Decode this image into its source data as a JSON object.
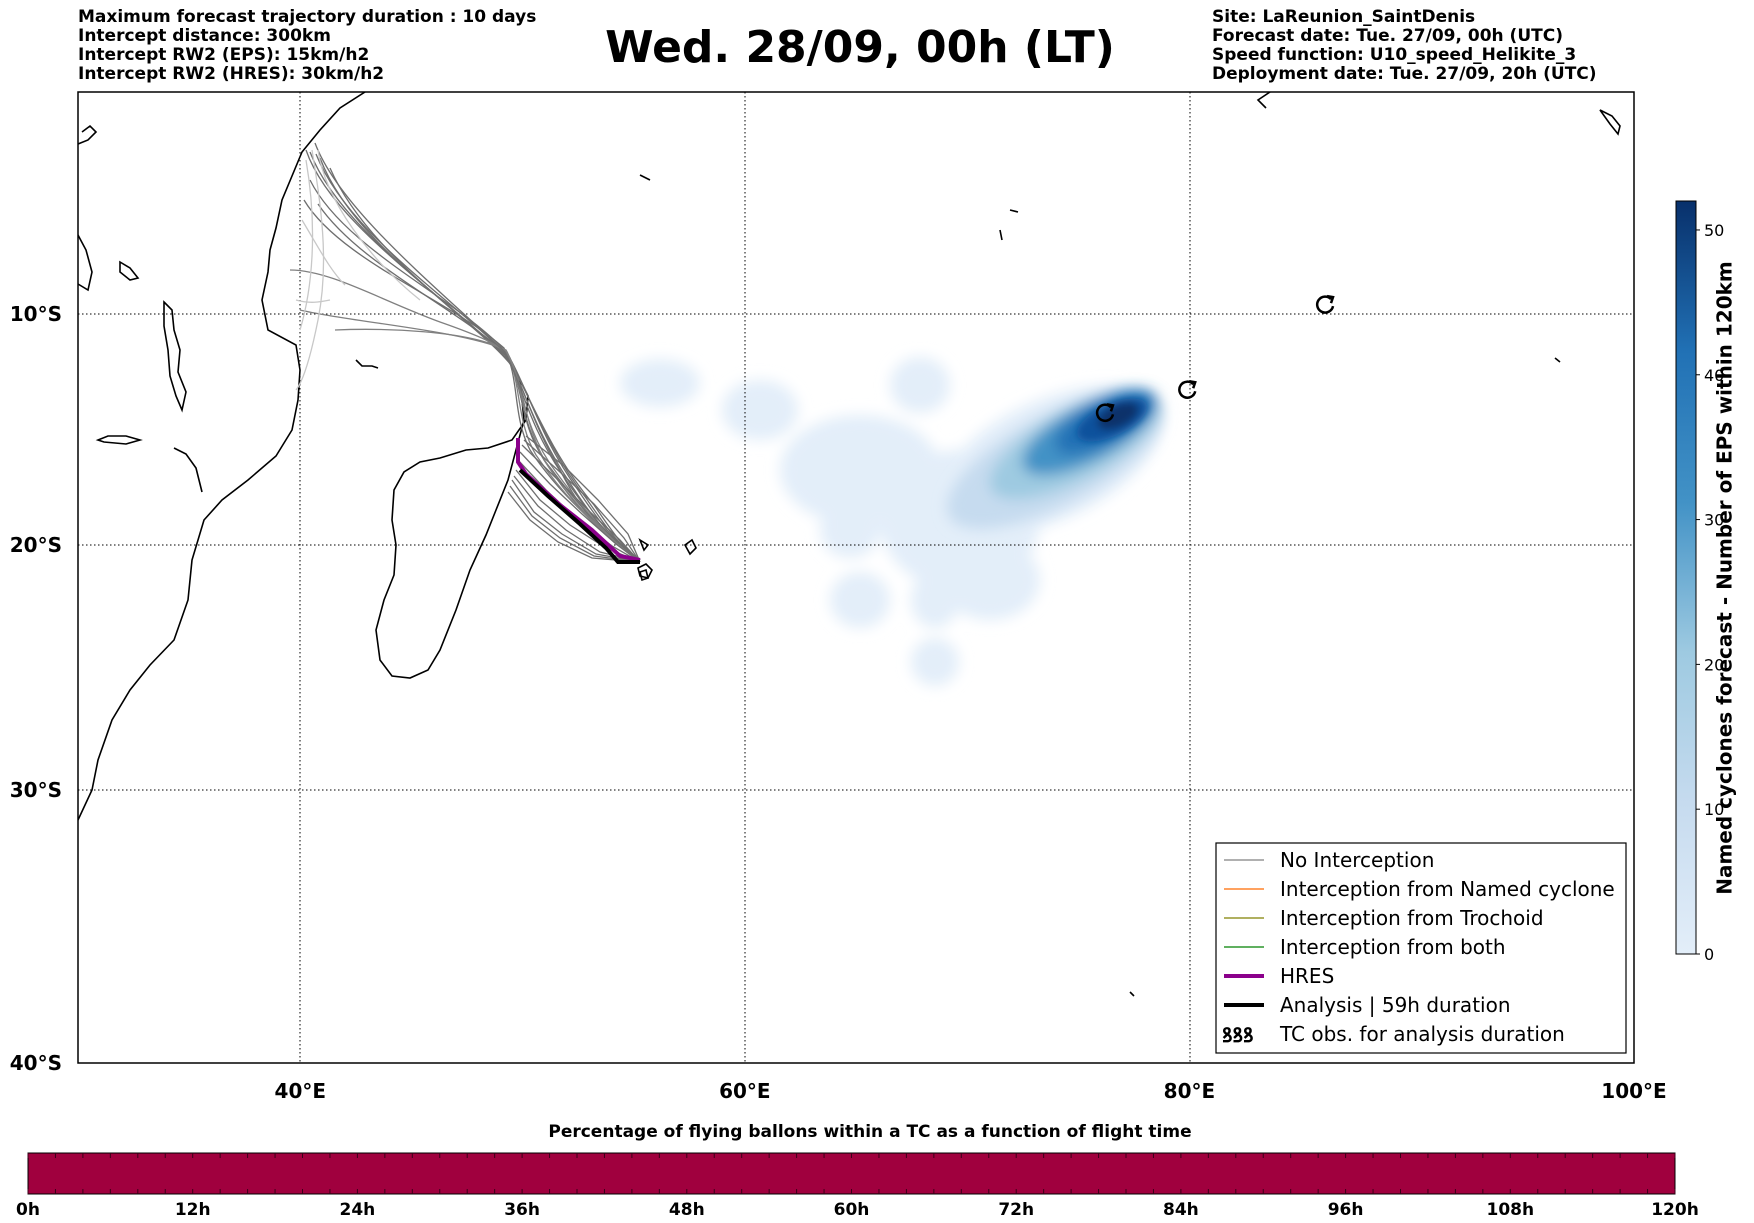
{
  "header_left": [
    "Maximum forecast trajectory duration : 10 days",
    "Intercept distance: 300km",
    "Intercept RW2 (EPS):  15km/h2",
    "Intercept RW2 (HRES): 30km/h2"
  ],
  "title": "Wed. 28/09, 00h (LT)",
  "header_right": [
    "Site: LaReunion_SaintDenis",
    "Forecast date: Tue. 27/09, 00h (UTC)",
    "Speed function: U10_speed_Helikite_3",
    "Deployment date: Tue. 27/09, 20h (UTC)"
  ],
  "map": {
    "lon_range": [
      30,
      100
    ],
    "lat_range": [
      -40,
      0
    ],
    "lon_ticks": [
      {
        "value": 40,
        "label": "40°E"
      },
      {
        "value": 60,
        "label": "60°E"
      },
      {
        "value": 80,
        "label": "80°E"
      },
      {
        "value": 100,
        "label": "100°E"
      }
    ],
    "lat_ticks": [
      {
        "value": -10,
        "label": "10°S"
      },
      {
        "value": -20,
        "label": "20°S"
      },
      {
        "value": -30,
        "label": "30°S"
      },
      {
        "value": -40,
        "label": "40°S"
      }
    ],
    "grid": "dotted",
    "cyclone_symbols": [
      {
        "lon": 76.2,
        "lat": -14.3
      },
      {
        "lon": 79.9,
        "lat": -13.3
      },
      {
        "lon": 86.1,
        "lat": -9.6
      }
    ]
  },
  "colorbar": {
    "label": "Named cyclones forecast - Number of EPS within 120km",
    "min": 0,
    "max": 52,
    "ticks": [
      0,
      10,
      20,
      30,
      40,
      50
    ],
    "color_low": "#e3eef9",
    "color_high": "#08306b"
  },
  "legend": {
    "placement": "bottom-right",
    "items": [
      {
        "label": "No Interception",
        "color": "#808080",
        "style": "thin"
      },
      {
        "label": "Interception from Named cyclone",
        "color": "#ff6a00",
        "style": "thin"
      },
      {
        "label": "Interception from Trochoid",
        "color": "#808000",
        "style": "thin"
      },
      {
        "label": "Interception from both",
        "color": "#008000",
        "style": "thin"
      },
      {
        "label": "HRES",
        "color": "#8b008b",
        "style": "thick"
      },
      {
        "label": "Analysis | 59h duration",
        "color": "#000000",
        "style": "thick"
      },
      {
        "label": "TC obs. for analysis duration",
        "color": "#000000",
        "style": "symbol",
        "symbol": "ꝸꝸꝸ"
      }
    ]
  },
  "bottom_bar": {
    "title": "Percentage of flying ballons within a TC as a function of flight time",
    "color": "#a0003e",
    "ticks": [
      "0h",
      "12h",
      "24h",
      "36h",
      "48h",
      "60h",
      "72h",
      "84h",
      "96h",
      "108h",
      "120h"
    ]
  }
}
